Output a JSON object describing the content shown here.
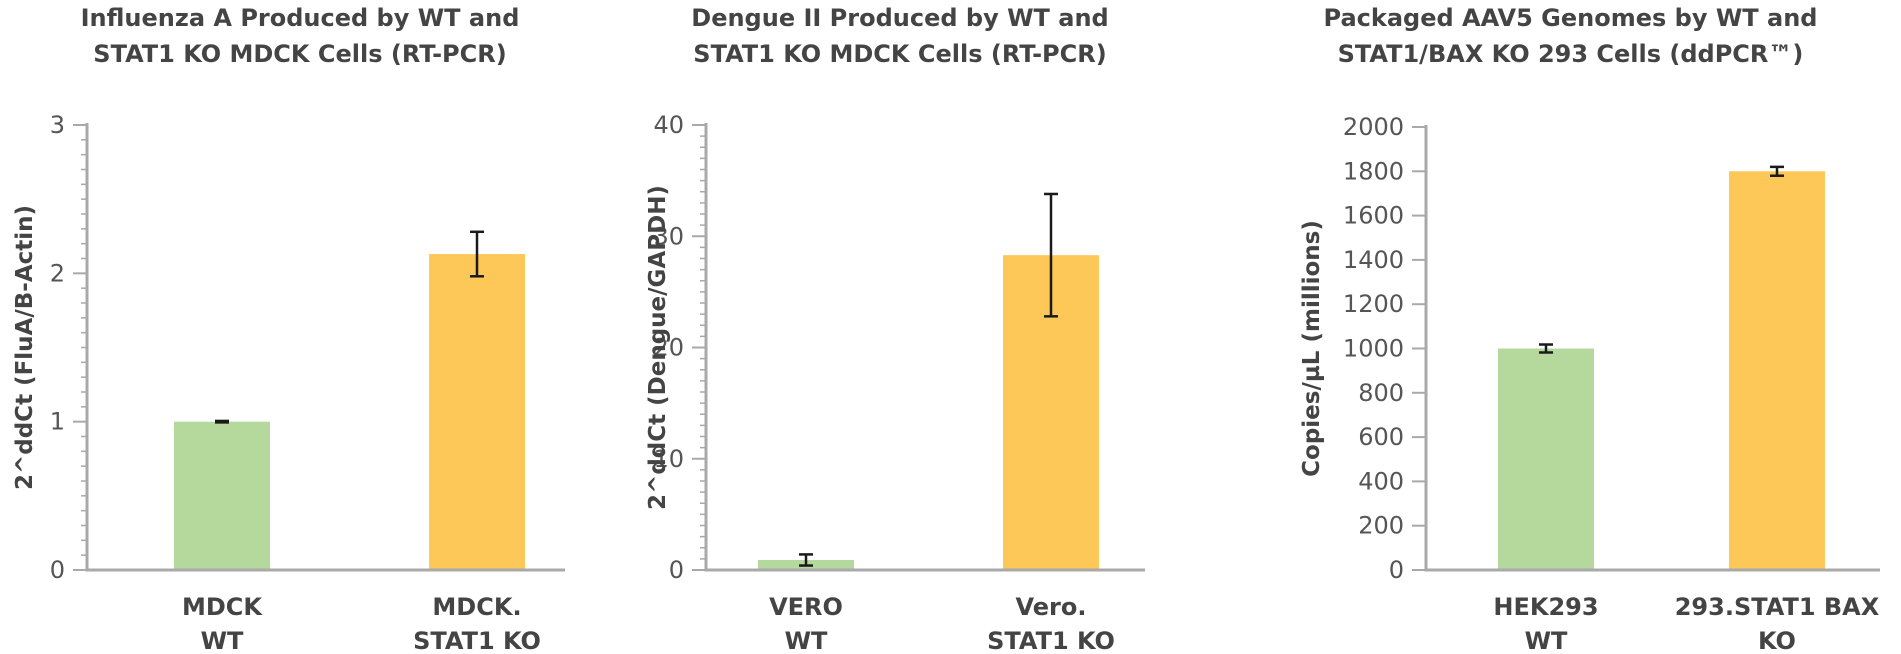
{
  "chart_data": [
    {
      "type": "bar",
      "title": [
        "Influenza A Produced by WT and",
        "STAT1 KO MDCK Cells (RT-PCR)"
      ],
      "ylabel": "2^ddCt (FluA/B-Actin)",
      "xlabel": "",
      "categories": [
        [
          "MDCK",
          "WT"
        ],
        [
          "MDCK.",
          "STAT1 KO"
        ]
      ],
      "values": [
        1.0,
        2.13
      ],
      "errors": [
        0.005,
        0.15
      ],
      "colors": [
        "#b5d99c",
        "#fdc857"
      ],
      "ylim": [
        0,
        3
      ],
      "yticks": [
        0,
        1,
        2,
        3
      ],
      "yticklabels": [
        "0",
        "1",
        "2",
        "3"
      ],
      "minor_ticks_per_major": 10,
      "grid": false
    },
    {
      "type": "bar",
      "title": [
        "Dengue II Produced by WT and",
        "STAT1 KO MDCK Cells (RT-PCR)"
      ],
      "ylabel": "2^ddCt (Dengue/GAPDH)",
      "xlabel": "",
      "categories": [
        [
          "VERO",
          "WT"
        ],
        [
          "Vero.",
          "STAT1 KO"
        ]
      ],
      "values": [
        0.9,
        28.3
      ],
      "errors": [
        0.5,
        5.5
      ],
      "colors": [
        "#b5d99c",
        "#fdc857"
      ],
      "ylim": [
        0,
        40
      ],
      "yticks": [
        0,
        10,
        20,
        30,
        40
      ],
      "yticklabels": [
        "0",
        "10",
        "20",
        "30",
        "40"
      ],
      "minor_ticks_per_major": 10,
      "grid": false
    },
    {
      "type": "bar",
      "title": [
        "Packaged AAV5 Genomes by WT and",
        "STAT1/BAX KO 293 Cells (ddPCR™)"
      ],
      "ylabel": "Copies/µL (millions)",
      "xlabel": "",
      "categories": [
        [
          "HEK293",
          "WT"
        ],
        [
          "293.STAT1 BAX",
          "KO"
        ]
      ],
      "values": [
        1000,
        1800
      ],
      "errors": [
        18,
        20
      ],
      "colors": [
        "#b5d99c",
        "#fdc857"
      ],
      "ylim": [
        0,
        2000
      ],
      "yticks": [
        0,
        200,
        400,
        600,
        800,
        1000,
        1200,
        1400,
        1600,
        1800,
        2000
      ],
      "yticklabels": [
        "0",
        "200",
        "400",
        "600",
        "800",
        "1000",
        "1200",
        "1400",
        "1600",
        "1800",
        "2000"
      ],
      "minor_ticks_per_major": 1,
      "grid": false
    }
  ]
}
